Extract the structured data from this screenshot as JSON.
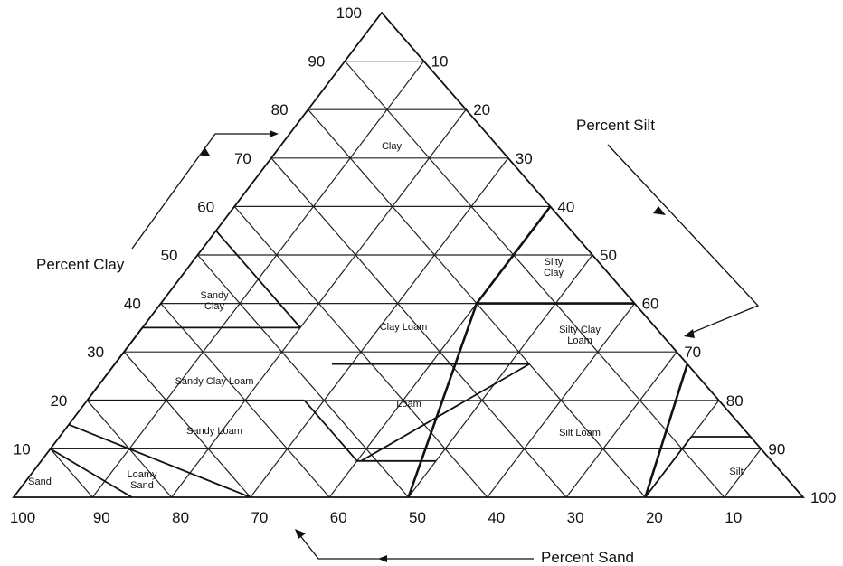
{
  "axes": {
    "clay": {
      "title": "Percent Clay",
      "ticks": [
        "10",
        "20",
        "30",
        "40",
        "50",
        "60",
        "70",
        "80",
        "90",
        "100"
      ]
    },
    "silt": {
      "title": "Percent Silt",
      "ticks": [
        "10",
        "20",
        "30",
        "40",
        "50",
        "60",
        "70",
        "80",
        "90",
        "100"
      ]
    },
    "sand": {
      "title": "Percent Sand",
      "ticks": [
        "100",
        "90",
        "80",
        "70",
        "60",
        "50",
        "40",
        "30",
        "20",
        "10"
      ]
    }
  },
  "regions": [
    {
      "id": "clay",
      "lines": [
        "Clay"
      ]
    },
    {
      "id": "silty-clay",
      "lines": [
        "Silty",
        "Clay"
      ]
    },
    {
      "id": "sandy-clay",
      "lines": [
        "Sandy",
        "Clay"
      ]
    },
    {
      "id": "clay-loam",
      "lines": [
        "Clay Loam"
      ]
    },
    {
      "id": "silty-clay-loam",
      "lines": [
        "Silty Clay",
        "Loam"
      ]
    },
    {
      "id": "sandy-clay-loam",
      "lines": [
        "Sandy Clay Loam"
      ]
    },
    {
      "id": "loam",
      "lines": [
        "Loam"
      ]
    },
    {
      "id": "sandy-loam",
      "lines": [
        "Sandy Loam"
      ]
    },
    {
      "id": "silt-loam",
      "lines": [
        "Silt Loam"
      ]
    },
    {
      "id": "silt",
      "lines": [
        "Silt"
      ]
    },
    {
      "id": "sand",
      "lines": [
        "Sand"
      ]
    },
    {
      "id": "loamy-sand",
      "lines": [
        "Loamy",
        "Sand"
      ]
    }
  ]
}
